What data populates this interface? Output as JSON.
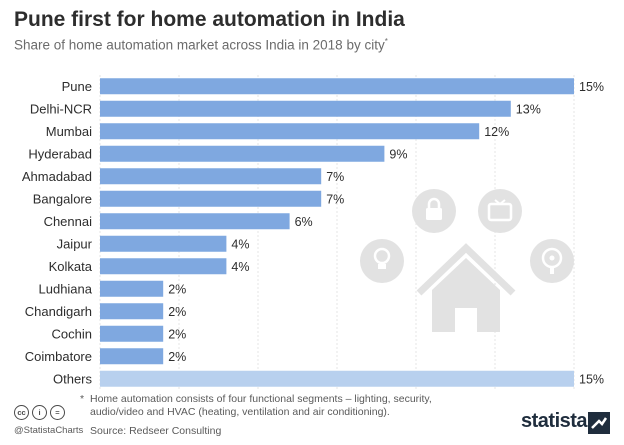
{
  "header": {
    "title": "Pune first for home automation in India",
    "subtitle": "Share of home automation market across India in 2018 by city",
    "subtitle_mark": "*"
  },
  "chart_data": {
    "type": "bar",
    "orientation": "horizontal",
    "categories": [
      "Pune",
      "Delhi-NCR",
      "Mumbai",
      "Hyderabad",
      "Ahmadabad",
      "Bangalore",
      "Chennai",
      "Jaipur",
      "Kolkata",
      "Ludhiana",
      "Chandigarh",
      "Cochin",
      "Coimbatore",
      "Others"
    ],
    "values": [
      15,
      13,
      12,
      9,
      7,
      7,
      6,
      4,
      4,
      2,
      2,
      2,
      2,
      15
    ],
    "value_labels": [
      "15%",
      "13%",
      "12%",
      "9%",
      "7%",
      "7%",
      "6%",
      "4%",
      "4%",
      "2%",
      "2%",
      "2%",
      "2%",
      "15%"
    ],
    "xlim": [
      0,
      15
    ],
    "grid": true,
    "colors": {
      "bar": "#7fa8e0",
      "others": "#b8d0ee"
    }
  },
  "footer": {
    "footnote_mark": "*",
    "footnote": "Home automation consists of four functional segments – lighting, security, audio/video and HVAC (heating, ventilation and air conditioning).",
    "source": "Source: Redseer Consulting",
    "handle": "@StatistaCharts",
    "brand": "statista",
    "license_icons": [
      "cc",
      "i",
      "="
    ]
  }
}
